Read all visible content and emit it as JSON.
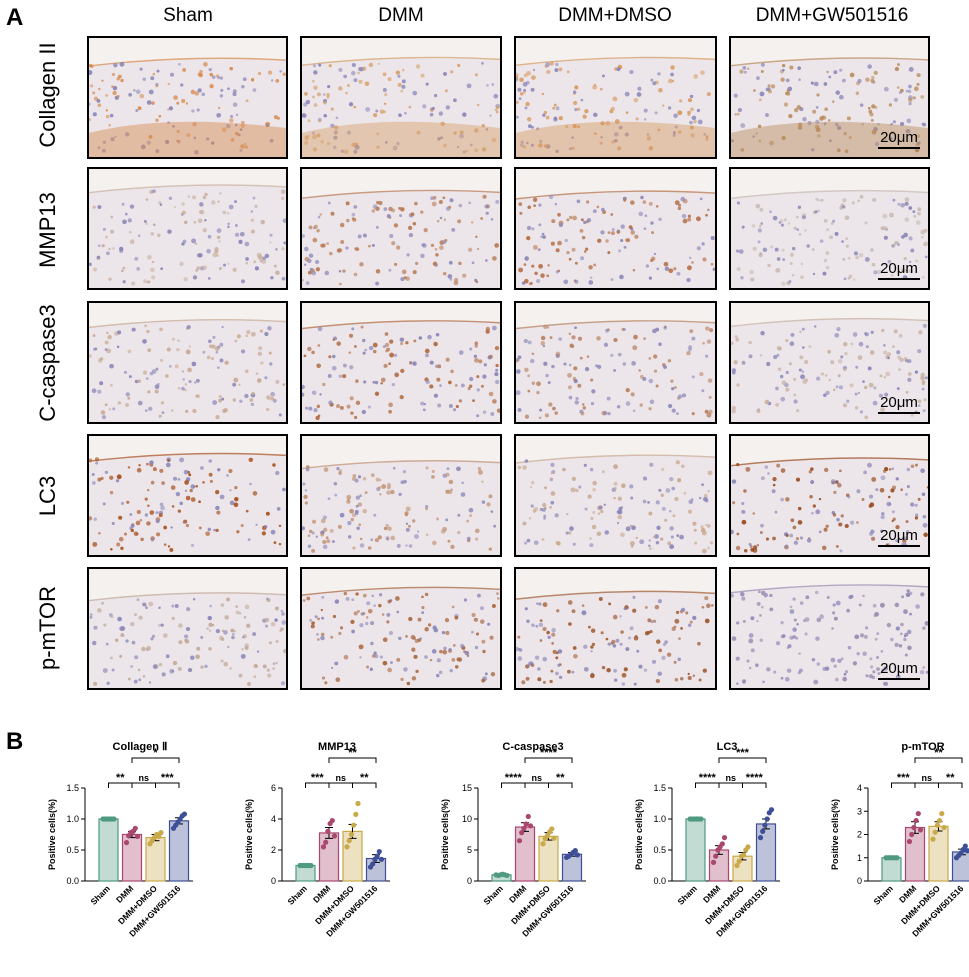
{
  "panel_a": {
    "letter": "A",
    "columns": [
      "Sham",
      "DMM",
      "DMM+DMSO",
      "DMM+GW501516"
    ],
    "rows": [
      "Collagen II",
      "MMP13",
      "C-caspase3",
      "LC3",
      "p-mTOR"
    ],
    "scale_bar": "20μm",
    "stain_colors": {
      "Collagen II": [
        "#d68a4c",
        "#d6a06a",
        "#d89a62",
        "#b98a5a"
      ],
      "MMP13": [
        "#c9b0a0",
        "#b87a55",
        "#b57048",
        "#c8b8b0"
      ],
      "C-caspase3": [
        "#c8a890",
        "#b06a40",
        "#b88060",
        "#c8b0a0"
      ],
      "LC3": [
        "#a8501e",
        "#c09070",
        "#c8a890",
        "#9a4a1e"
      ],
      "p-mTOR": [
        "#c0a898",
        "#a8643a",
        "#a05a30",
        "#9a8ab0"
      ]
    }
  },
  "panel_b": {
    "letter": "B",
    "groups": [
      "Sham",
      "DMM",
      "DMM+DMSO",
      "DMM+GW501516"
    ],
    "colors": [
      "#4f9a80",
      "#a9476f",
      "#c9a94a",
      "#3f4f96"
    ],
    "ylabel": "Positive cells(%)"
  },
  "chart_data": [
    {
      "type": "bar",
      "title": "Collagen Ⅱ",
      "ylabel": "Positive cells(%)",
      "categories": [
        "Sham",
        "DMM",
        "DMM+DMSO",
        "DMM+GW501516"
      ],
      "values": [
        1.0,
        0.75,
        0.7,
        0.97
      ],
      "errors": [
        0.0,
        0.05,
        0.05,
        0.05
      ],
      "points": [
        [
          1.0,
          1.0,
          1.0,
          1.0,
          1.0,
          1.0
        ],
        [
          0.62,
          0.73,
          0.78,
          0.8,
          0.85,
          0.72
        ],
        [
          0.6,
          0.65,
          0.7,
          0.75,
          0.72,
          0.78
        ],
        [
          0.85,
          0.9,
          0.95,
          1.0,
          1.05,
          1.08
        ]
      ],
      "ylim": [
        0,
        1.5
      ],
      "yticks": [
        "0.0",
        "0.5",
        "1.0",
        "1.5"
      ],
      "significance": [
        {
          "from": 0,
          "to": 1,
          "label": "**",
          "level": 1
        },
        {
          "from": 1,
          "to": 2,
          "label": "ns",
          "level": 1
        },
        {
          "from": 2,
          "to": 3,
          "label": "***",
          "level": 1
        },
        {
          "from": 1,
          "to": 3,
          "label": "*",
          "level": 2
        }
      ]
    },
    {
      "type": "bar",
      "title": "MMP13",
      "ylabel": "Positive cells(%)",
      "categories": [
        "Sham",
        "DMM",
        "DMM+DMSO",
        "DMM+GW501516"
      ],
      "values": [
        1.0,
        3.1,
        3.2,
        1.45
      ],
      "errors": [
        0.0,
        0.35,
        0.45,
        0.25
      ],
      "points": [
        [
          1.0,
          1.0,
          1.0,
          1.0,
          1.0,
          1.0
        ],
        [
          2.2,
          2.5,
          3.2,
          3.7,
          3.9,
          2.9
        ],
        [
          2.2,
          2.6,
          3.0,
          3.6,
          4.3,
          5.0
        ],
        [
          0.9,
          1.1,
          1.4,
          1.6,
          1.9,
          1.4
        ]
      ],
      "ylim": [
        0,
        6
      ],
      "yticks": [
        "0",
        "2",
        "4",
        "6"
      ],
      "significance": [
        {
          "from": 0,
          "to": 1,
          "label": "***",
          "level": 1
        },
        {
          "from": 1,
          "to": 2,
          "label": "ns",
          "level": 1
        },
        {
          "from": 2,
          "to": 3,
          "label": "**",
          "level": 1
        },
        {
          "from": 1,
          "to": 3,
          "label": "**",
          "level": 2
        }
      ]
    },
    {
      "type": "bar",
      "title": "C-caspase3",
      "ylabel": "Positive cells(%)",
      "categories": [
        "Sham",
        "DMM",
        "DMM+DMSO",
        "DMM+GW501516"
      ],
      "values": [
        1.0,
        8.7,
        7.2,
        4.3
      ],
      "errors": [
        0.0,
        0.7,
        0.6,
        0.3
      ],
      "points": [
        [
          1.0,
          0.9,
          1.0,
          1.1,
          1.0,
          0.9
        ],
        [
          6.5,
          7.8,
          8.5,
          9.2,
          10.4,
          8.9
        ],
        [
          6.0,
          6.8,
          7.3,
          7.9,
          8.4,
          6.9
        ],
        [
          3.8,
          4.0,
          4.3,
          4.6,
          4.9,
          4.2
        ]
      ],
      "ylim": [
        0,
        15
      ],
      "yticks": [
        "0",
        "5",
        "10",
        "15"
      ],
      "significance": [
        {
          "from": 0,
          "to": 1,
          "label": "****",
          "level": 1
        },
        {
          "from": 1,
          "to": 2,
          "label": "ns",
          "level": 1
        },
        {
          "from": 2,
          "to": 3,
          "label": "**",
          "level": 1
        },
        {
          "from": 1,
          "to": 3,
          "label": "****",
          "level": 2
        }
      ]
    },
    {
      "type": "bar",
      "title": "LC3",
      "ylabel": "Positive cells(%)",
      "categories": [
        "Sham",
        "DMM",
        "DMM+DMSO",
        "DMM+GW501516"
      ],
      "values": [
        1.0,
        0.5,
        0.4,
        0.92
      ],
      "errors": [
        0.0,
        0.07,
        0.06,
        0.08
      ],
      "points": [
        [
          1.0,
          1.0,
          1.0,
          1.0,
          1.0,
          1.0
        ],
        [
          0.3,
          0.4,
          0.5,
          0.55,
          0.6,
          0.7
        ],
        [
          0.25,
          0.32,
          0.4,
          0.42,
          0.5,
          0.55
        ],
        [
          0.7,
          0.8,
          0.9,
          1.0,
          1.1,
          1.15
        ]
      ],
      "ylim": [
        0,
        1.5
      ],
      "yticks": [
        "0.0",
        "0.5",
        "1.0",
        "1.5"
      ],
      "significance": [
        {
          "from": 0,
          "to": 1,
          "label": "****",
          "level": 1
        },
        {
          "from": 1,
          "to": 2,
          "label": "ns",
          "level": 1
        },
        {
          "from": 2,
          "to": 3,
          "label": "****",
          "level": 1
        },
        {
          "from": 1,
          "to": 3,
          "label": "***",
          "level": 2
        }
      ]
    },
    {
      "type": "bar",
      "title": "p-mTOR",
      "ylabel": "Positive cells(%)",
      "categories": [
        "Sham",
        "DMM",
        "DMM+DMSO",
        "DMM+GW501516"
      ],
      "values": [
        1.0,
        2.3,
        2.35,
        1.25
      ],
      "errors": [
        0.0,
        0.25,
        0.2,
        0.12
      ],
      "points": [
        [
          1.0,
          1.0,
          1.0,
          1.0,
          1.0,
          1.0
        ],
        [
          1.7,
          2.0,
          2.3,
          2.6,
          2.9,
          2.2
        ],
        [
          1.8,
          2.1,
          2.4,
          2.6,
          2.9,
          2.3
        ],
        [
          1.0,
          1.1,
          1.2,
          1.35,
          1.5,
          1.3
        ]
      ],
      "ylim": [
        0,
        4
      ],
      "yticks": [
        "0",
        "1",
        "2",
        "3",
        "4"
      ],
      "significance": [
        {
          "from": 0,
          "to": 1,
          "label": "***",
          "level": 1
        },
        {
          "from": 1,
          "to": 2,
          "label": "ns",
          "level": 1
        },
        {
          "from": 2,
          "to": 3,
          "label": "**",
          "level": 1
        },
        {
          "from": 1,
          "to": 3,
          "label": "**",
          "level": 2
        }
      ]
    }
  ]
}
